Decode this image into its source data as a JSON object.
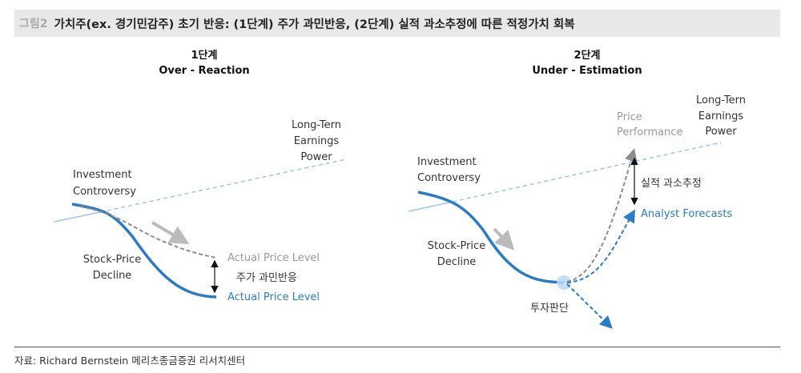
{
  "header": {
    "figure_number": "그림2",
    "title": "가치주(ex. 경기민감주) 초기 반응: (1단계) 주가 과민반응, (2단계) 실적 과소추정에 따른 적정가치 회복"
  },
  "stage1": {
    "heading": "1단계",
    "subheading": "Over - Reaction",
    "earnings_label": [
      "Long-Tern",
      "Earnings",
      "Power"
    ],
    "controversy_label": [
      "Investment",
      "Controversy"
    ],
    "decline_label": [
      "Stock-Price",
      "Decline"
    ],
    "actual_price_gray": "Actual Price Level",
    "overreaction_label": "주가 과민반응",
    "actual_price_blue": "Actual Price Level"
  },
  "stage2": {
    "heading": "2단계",
    "subheading": "Under - Estimation",
    "price_perf_label": [
      "Price",
      "Performance"
    ],
    "earnings_label": [
      "Long-Tern",
      "Earnings",
      "Power"
    ],
    "controversy_label": [
      "Investment",
      "Controversy"
    ],
    "decline_label": [
      "Stock-Price",
      "Decline"
    ],
    "underestimation_label": "실적 과소추정",
    "analyst_label": "Analyst Forecasts",
    "decision_label": "투자판단"
  },
  "colors": {
    "blue": "#2b7bc6",
    "light_blue": "#9cc6ea",
    "gray": "#8c8c8c"
  },
  "source": "자료: Richard Bernstein 메리츠종금증권 리서치센터"
}
